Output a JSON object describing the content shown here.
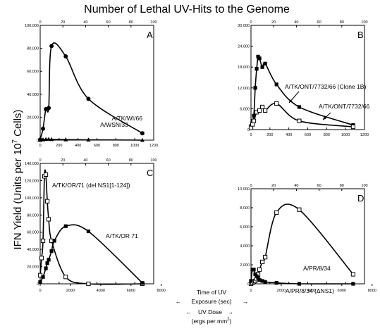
{
  "figure": {
    "title": "Number of Lethal UV-Hits to the Genome",
    "ylabel": "IFN Yield (Units per 10",
    "ylabel_sup": "7",
    "ylabel_tail": " Cells)",
    "center_label": {
      "line1": "Time of UV",
      "line2": "Exposure (sec)",
      "line3": "UV Dose",
      "line4": "(ergs per mm",
      "line4_sup": "2",
      "line4_tail": ")",
      "left_arrow": "←",
      "right_arrow": "→"
    }
  },
  "chart_data": [
    {
      "type": "line",
      "panel": "A",
      "x_bottom": {
        "lim": [
          0,
          1200
        ],
        "ticks": [
          "0",
          "200",
          "400",
          "600",
          "800",
          "1000",
          "1200"
        ]
      },
      "x_top": {
        "lim": [
          0,
          100
        ],
        "ticks": [
          "0",
          "20",
          "40",
          "60",
          "80",
          "100"
        ]
      },
      "y": {
        "lim": [
          0,
          100000
        ],
        "ticks": [
          "0",
          "20,000",
          "40,000",
          "60,000",
          "80,000",
          "100,000"
        ]
      },
      "series": [
        {
          "name": "A/TK/WI/66",
          "marker": "filled-circle",
          "x": [
            0,
            30,
            60,
            90,
            120,
            270,
            510,
            1080
          ],
          "y": [
            500,
            10000,
            27000,
            28000,
            82000,
            73000,
            36000,
            6000
          ]
        },
        {
          "name": "A/WSN/33",
          "marker": "filled-triangle",
          "x": [
            0,
            30,
            60,
            90,
            120,
            270,
            510,
            1080
          ],
          "y": [
            0,
            500,
            800,
            900,
            700,
            500,
            300,
            0
          ]
        }
      ]
    },
    {
      "type": "line",
      "panel": "B",
      "x_bottom": {
        "lim": [
          0,
          1200
        ],
        "ticks": [
          "0",
          "200",
          "400",
          "600",
          "800",
          "1000",
          "1200"
        ]
      },
      "x_top": {
        "lim": [
          0,
          100
        ],
        "ticks": [
          "0",
          "20",
          "40",
          "60",
          "80",
          "100"
        ]
      },
      "y": {
        "lim": [
          0,
          30000
        ],
        "ticks": [
          "0",
          "6,000",
          "12,000",
          "18,000",
          "24,000",
          "30,000"
        ]
      },
      "series": [
        {
          "name": "A/TK/ONT/7732/66 (Clone 1B)",
          "marker": "filled-square",
          "x": [
            0,
            15,
            30,
            45,
            60,
            75,
            90,
            120,
            150,
            270,
            510,
            1080
          ],
          "y": [
            1000,
            2500,
            4000,
            12000,
            17500,
            21000,
            20500,
            18000,
            19000,
            13000,
            6500,
            1300
          ]
        },
        {
          "name": "A/TK/ONT/7732/66",
          "marker": "open-square",
          "x": [
            0,
            15,
            30,
            60,
            90,
            120,
            150,
            270,
            510,
            1080
          ],
          "y": [
            500,
            1500,
            2500,
            5000,
            5500,
            6500,
            5500,
            7500,
            2500,
            800
          ]
        }
      ]
    },
    {
      "type": "line",
      "panel": "C",
      "x_bottom": {
        "lim": [
          0,
          1200
        ],
        "ticks": [
          "0",
          "200",
          "400",
          "600",
          "800",
          "1000",
          "1200"
        ]
      },
      "x_top": {
        "lim": [
          0,
          100
        ],
        "ticks": [
          "0",
          "20",
          "40",
          "60",
          "80",
          "100"
        ]
      },
      "x_dose": {
        "lim": [
          0,
          7500
        ],
        "ticks": [
          "0",
          "2000",
          "4000",
          "6000",
          "8000"
        ]
      },
      "y": {
        "lim": [
          0,
          140000
        ],
        "ticks": [
          "0",
          "20,000",
          "40,000",
          "60,000",
          "80,000",
          "100,000",
          "120,000",
          "140,000"
        ]
      },
      "series": [
        {
          "name": "A/TK/OR/71 (del NS1[1-124])",
          "marker": "open-square",
          "x": [
            0,
            15,
            30,
            45,
            60,
            75,
            90,
            120,
            270,
            510,
            1080
          ],
          "y": [
            10000,
            30000,
            50000,
            125000,
            127000,
            96000,
            75000,
            50000,
            8000,
            0,
            0
          ]
        },
        {
          "name": "A/TK/OR 71",
          "marker": "filled-square",
          "x": [
            0,
            30,
            60,
            75,
            90,
            120,
            150,
            270,
            510,
            1080
          ],
          "y": [
            2000,
            8000,
            18000,
            24000,
            28000,
            38000,
            50000,
            67000,
            61000,
            1000
          ]
        }
      ]
    },
    {
      "type": "line",
      "panel": "D",
      "x_bottom": {
        "lim": [
          0,
          1200
        ],
        "ticks": [
          "0",
          "200",
          "400",
          "600",
          "800",
          "1000",
          "1200"
        ]
      },
      "x_top": {
        "lim": [
          0,
          100
        ],
        "ticks": [
          "0",
          "20",
          "40",
          "60",
          "80",
          "100"
        ]
      },
      "x_dose": {
        "lim": [
          0,
          7500
        ],
        "ticks": [
          "0",
          "2000",
          "4000",
          "6000",
          "8000"
        ]
      },
      "y": {
        "lim": [
          0,
          10000
        ],
        "ticks": [
          "0",
          "2,000",
          "4,000",
          "6,000",
          "8,000",
          "10,000"
        ]
      },
      "series": [
        {
          "name": "A/PR/8/34",
          "marker": "open-square",
          "x": [
            0,
            15,
            30,
            45,
            60,
            75,
            90,
            120,
            150,
            270,
            510,
            1080
          ],
          "y": [
            0,
            100,
            200,
            300,
            500,
            1000,
            1500,
            2300,
            2800,
            7500,
            7800,
            1000
          ]
        },
        {
          "name": "A/PR/8/34 (ΔNS1)",
          "marker": "filled-square",
          "x": [
            0,
            15,
            30,
            45,
            60,
            75,
            90,
            120,
            150,
            270,
            510,
            1080
          ],
          "y": [
            300,
            1500,
            1500,
            1000,
            800,
            600,
            400,
            300,
            200,
            100,
            0,
            0
          ]
        }
      ]
    }
  ]
}
